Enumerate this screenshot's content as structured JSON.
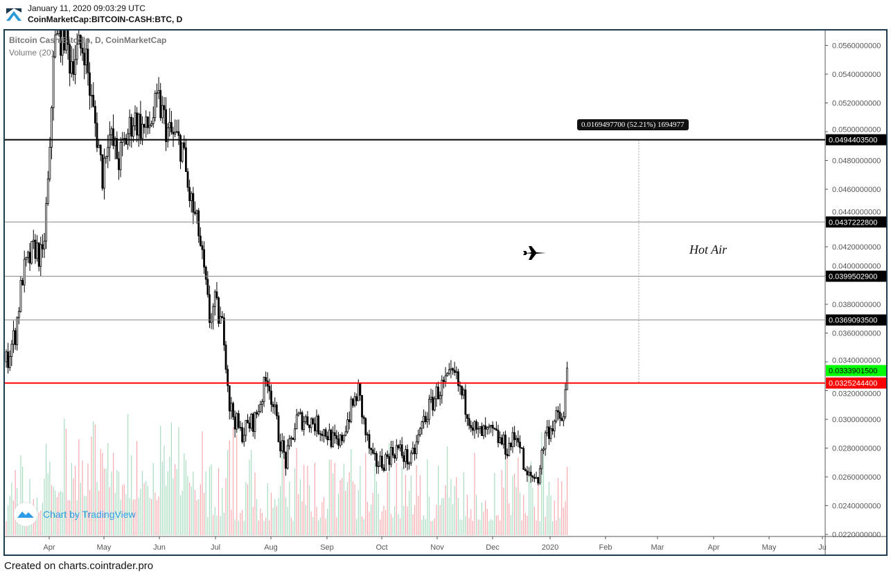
{
  "header": {
    "timestamp": "January 11, 2020 09:03:29 UTC",
    "symbol": "CoinMarketCap:BITCOIN-CASH:BTC, D"
  },
  "legend": {
    "series": "Bitcoin Cash/Bitcoin, D, CoinMarketCap",
    "volume": "Volume (20)"
  },
  "watermark": "Chart by TradingView",
  "footer": "Created on charts.cointrader.pro",
  "annotations": {
    "measure": "0.0169497700 (52.21%) 1694977",
    "text": "Hot Air",
    "icon": "fighter-jet-icon"
  },
  "chart_data": {
    "type": "candlestick",
    "start_date": "2019-03-08",
    "ylim": [
      0.022,
      0.057
    ],
    "y_ticks": [
      "0.0560000000",
      "0.0540000000",
      "0.0520000000",
      "0.0500000000",
      "0.0480000000",
      "0.0460000000",
      "0.0440000000",
      "0.0420000000",
      "0.0400000000",
      "0.0380000000",
      "0.0360000000",
      "0.0340000000",
      "0.0320000000",
      "0.0300000000",
      "0.0280000000",
      "0.0260000000",
      "0.0240000000",
      "0.0220000000"
    ],
    "x_ticks": [
      "Apr",
      "May",
      "Jun",
      "Jul",
      "Aug",
      "Sep",
      "Oct",
      "Nov",
      "Dec",
      "2020",
      "Feb",
      "Mar",
      "Apr",
      "May",
      "Ju"
    ],
    "close_path": [
      [
        0,
        0.034
      ],
      [
        5,
        0.036
      ],
      [
        9,
        0.04
      ],
      [
        16,
        0.042
      ],
      [
        20,
        0.041
      ],
      [
        24,
        0.048
      ],
      [
        26,
        0.056
      ],
      [
        32,
        0.057
      ],
      [
        35,
        0.055
      ],
      [
        43,
        0.056
      ],
      [
        47,
        0.052
      ],
      [
        51,
        0.049
      ],
      [
        53,
        0.047
      ],
      [
        56,
        0.05
      ],
      [
        62,
        0.048
      ],
      [
        70,
        0.051
      ],
      [
        77,
        0.05
      ],
      [
        84,
        0.052
      ],
      [
        89,
        0.05
      ],
      [
        97,
        0.049
      ],
      [
        100,
        0.046
      ],
      [
        106,
        0.043
      ],
      [
        110,
        0.039
      ],
      [
        112,
        0.037
      ],
      [
        115,
        0.038
      ],
      [
        120,
        0.036
      ],
      [
        123,
        0.031
      ],
      [
        129,
        0.029
      ],
      [
        137,
        0.03
      ],
      [
        144,
        0.033
      ],
      [
        150,
        0.029
      ],
      [
        154,
        0.027
      ],
      [
        160,
        0.03
      ],
      [
        167,
        0.03
      ],
      [
        177,
        0.029
      ],
      [
        183,
        0.028
      ],
      [
        188,
        0.03
      ],
      [
        194,
        0.032
      ],
      [
        198,
        0.029
      ],
      [
        202,
        0.027
      ],
      [
        207,
        0.027
      ],
      [
        215,
        0.028
      ],
      [
        223,
        0.027
      ],
      [
        230,
        0.03
      ],
      [
        238,
        0.032
      ],
      [
        247,
        0.033
      ],
      [
        253,
        0.031
      ],
      [
        259,
        0.029
      ],
      [
        268,
        0.029
      ],
      [
        276,
        0.028
      ],
      [
        282,
        0.029
      ],
      [
        286,
        0.026
      ],
      [
        293,
        0.026
      ],
      [
        297,
        0.029
      ],
      [
        303,
        0.03
      ],
      [
        307,
        0.03
      ],
      [
        309,
        0.0334
      ]
    ],
    "levels": [
      {
        "value": "0.0494403500",
        "color": "#000000",
        "label_bg": "#000000"
      },
      {
        "value": "0.0437222800",
        "color": "#888888",
        "label_bg": "#000000"
      },
      {
        "value": "0.0399502900",
        "color": "#888888",
        "label_bg": "#000000"
      },
      {
        "value": "0.0369093500",
        "color": "#888888",
        "label_bg": "#000000"
      },
      {
        "value": "0.0325244400",
        "color": "#ff0000",
        "label_bg": "#ff0000"
      }
    ],
    "last_price": {
      "value": "0.0333901500",
      "color": "#00ff00"
    }
  }
}
